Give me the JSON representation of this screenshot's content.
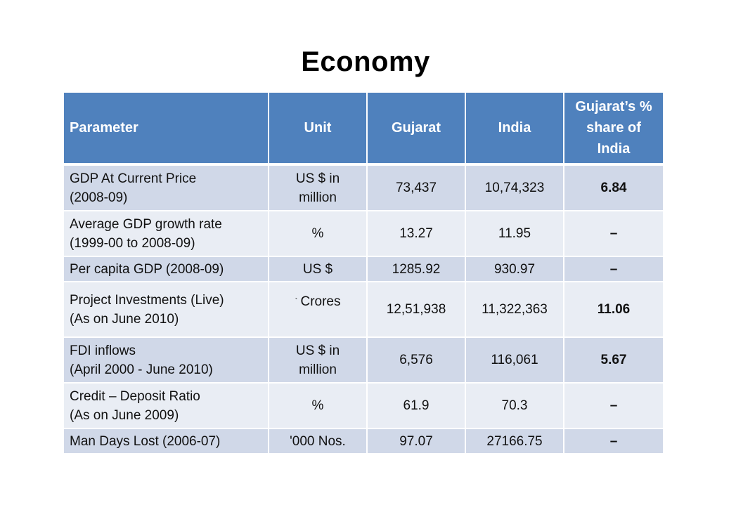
{
  "title": "Economy",
  "table": {
    "headers": [
      "Parameter",
      "Unit",
      "Gujarat",
      "India",
      "Gujarat’s % share of India"
    ],
    "rows": [
      {
        "parameter": [
          "GDP At Current Price",
          "(2008-09)"
        ],
        "unit": [
          "US $ in",
          "million"
        ],
        "gujarat": "73,437",
        "india": "10,74,323",
        "share": "6.84"
      },
      {
        "parameter": [
          "Average GDP growth rate",
          "(1999-00 to 2008-09)"
        ],
        "unit": [
          "%"
        ],
        "gujarat": "13.27",
        "india": "11.95",
        "share": "–"
      },
      {
        "parameter": [
          "Per capita GDP  (2008-09)"
        ],
        "unit": [
          "US $"
        ],
        "gujarat": "1285.92",
        "india": "930.97",
        "share": "–"
      },
      {
        "parameter": [
          "Project Investments (Live)",
          "(As on June 2010)"
        ],
        "unit_symbol": "`",
        "unit": [
          "Crores"
        ],
        "gujarat": "12,51,938",
        "india": "11,322,363",
        "share": "11.06"
      },
      {
        "parameter": [
          "FDI inflows",
          "(April 2000 - June 2010)"
        ],
        "unit": [
          "US $ in",
          "million"
        ],
        "gujarat": "6,576",
        "india": "116,061",
        "share": "5.67"
      },
      {
        "parameter": [
          "Credit – Deposit Ratio",
          "(As on June 2009)"
        ],
        "unit": [
          "%"
        ],
        "gujarat": "61.9",
        "india": "70.3",
        "share": "–"
      },
      {
        "parameter": [
          "Man Days Lost (2006-07)"
        ],
        "unit": [
          "'000 Nos."
        ],
        "gujarat": "97.07",
        "india": "27166.75",
        "share": "–"
      }
    ]
  },
  "colors": {
    "header_bg": "#4f81bd",
    "row_odd_bg": "#d0d8e8",
    "row_even_bg": "#e9edf4"
  }
}
